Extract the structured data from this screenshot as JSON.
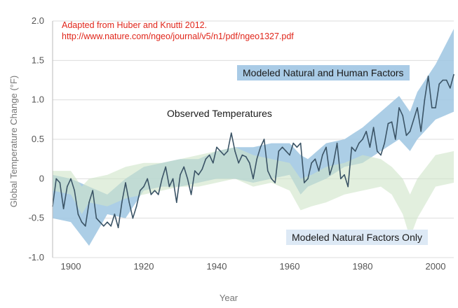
{
  "source_note": {
    "line1": "Adapted from Huber and Knutti 2012.",
    "line2": "http://www.nature.com/ngeo/journal/v5/n1/pdf/ngeo1327.pdf"
  },
  "annotations": {
    "observed": "Observed Temperatures",
    "human": "Modeled Natural and Human Factors",
    "natural": "Modeled Natural Factors Only"
  },
  "colors": {
    "observed_line": "#3b5466",
    "human_band": "#9ec6e2",
    "natural_band": "#cfe5c8",
    "overlap_band": "#8fbcb4",
    "grid": "#dddddd",
    "text_red": "#e0261b"
  },
  "chart_data": {
    "type": "line",
    "xlabel": "Year",
    "ylabel": "Global Temperature Change (°F)",
    "xlim": [
      1895,
      2005
    ],
    "ylim": [
      -1.0,
      2.0
    ],
    "x_ticks": [
      1900,
      1920,
      1940,
      1960,
      1980,
      2000
    ],
    "y_ticks": [
      -1.0,
      -0.5,
      0,
      0.5,
      1.0,
      1.5,
      2.0
    ],
    "y_tick_labels": [
      "-1.0",
      "-0.5",
      "0",
      "0.5",
      "1.0",
      "1.5",
      "2.0"
    ],
    "grid": "horizontal",
    "series": [
      {
        "name": "Observed Temperatures",
        "x": [
          1895,
          1896,
          1897,
          1898,
          1899,
          1900,
          1901,
          1902,
          1903,
          1904,
          1905,
          1906,
          1907,
          1908,
          1909,
          1910,
          1911,
          1912,
          1913,
          1914,
          1915,
          1916,
          1917,
          1918,
          1919,
          1920,
          1921,
          1922,
          1923,
          1924,
          1925,
          1926,
          1927,
          1928,
          1929,
          1930,
          1931,
          1932,
          1933,
          1934,
          1935,
          1936,
          1937,
          1938,
          1939,
          1940,
          1941,
          1942,
          1943,
          1944,
          1945,
          1946,
          1947,
          1948,
          1949,
          1950,
          1951,
          1952,
          1953,
          1954,
          1955,
          1956,
          1957,
          1958,
          1959,
          1960,
          1961,
          1962,
          1963,
          1964,
          1965,
          1966,
          1967,
          1968,
          1969,
          1970,
          1971,
          1972,
          1973,
          1974,
          1975,
          1976,
          1977,
          1978,
          1979,
          1980,
          1981,
          1982,
          1983,
          1984,
          1985,
          1986,
          1987,
          1988,
          1989,
          1990,
          1991,
          1992,
          1993,
          1994,
          1995,
          1996,
          1997,
          1998,
          1999,
          2000,
          2001,
          2002,
          2003,
          2004,
          2005
        ],
        "values": [
          -0.35,
          0.0,
          -0.05,
          -0.38,
          -0.1,
          0.0,
          -0.15,
          -0.45,
          -0.55,
          -0.6,
          -0.3,
          -0.15,
          -0.5,
          -0.55,
          -0.6,
          -0.55,
          -0.6,
          -0.45,
          -0.62,
          -0.3,
          -0.05,
          -0.3,
          -0.5,
          -0.35,
          -0.15,
          -0.1,
          0.0,
          -0.2,
          -0.15,
          -0.2,
          0.0,
          0.15,
          -0.1,
          0.0,
          -0.3,
          0.05,
          0.15,
          0.0,
          -0.2,
          0.1,
          0.05,
          0.12,
          0.25,
          0.3,
          0.2,
          0.4,
          0.35,
          0.3,
          0.35,
          0.58,
          0.35,
          0.2,
          0.3,
          0.28,
          0.2,
          0.0,
          0.25,
          0.4,
          0.5,
          0.1,
          0.0,
          -0.05,
          0.35,
          0.4,
          0.35,
          0.3,
          0.45,
          0.4,
          0.45,
          -0.05,
          0.0,
          0.2,
          0.25,
          0.1,
          0.3,
          0.4,
          0.05,
          0.2,
          0.45,
          0.0,
          0.05,
          -0.1,
          0.4,
          0.35,
          0.45,
          0.5,
          0.6,
          0.4,
          0.65,
          0.35,
          0.3,
          0.45,
          0.7,
          0.72,
          0.5,
          0.9,
          0.8,
          0.55,
          0.6,
          0.75,
          0.9,
          0.6,
          1.0,
          1.3,
          0.9,
          0.9,
          1.2,
          1.25,
          1.25,
          1.15,
          1.32
        ]
      },
      {
        "name": "Modeled Natural and Human Factors",
        "x": [
          1895,
          1900,
          1905,
          1910,
          1915,
          1920,
          1925,
          1930,
          1935,
          1940,
          1945,
          1950,
          1955,
          1960,
          1963,
          1965,
          1970,
          1975,
          1980,
          1985,
          1990,
          1993,
          1995,
          2000,
          2005
        ],
        "lower": [
          -0.5,
          -0.55,
          -0.85,
          -0.45,
          -0.5,
          -0.15,
          -0.1,
          -0.1,
          -0.05,
          0.0,
          0.0,
          -0.05,
          0.0,
          0.05,
          -0.2,
          -0.1,
          0.0,
          0.15,
          0.2,
          0.35,
          0.5,
          0.35,
          0.5,
          0.75,
          0.85
        ],
        "upper": [
          0.05,
          0.0,
          -0.1,
          -0.2,
          0.0,
          0.15,
          0.2,
          0.25,
          0.25,
          0.35,
          0.4,
          0.4,
          0.45,
          0.45,
          0.3,
          0.25,
          0.45,
          0.5,
          0.65,
          0.85,
          1.05,
          0.85,
          1.1,
          1.45,
          1.9
        ]
      },
      {
        "name": "Modeled Natural Factors Only",
        "x": [
          1895,
          1900,
          1903,
          1905,
          1910,
          1915,
          1920,
          1925,
          1930,
          1935,
          1940,
          1945,
          1950,
          1955,
          1960,
          1963,
          1966,
          1970,
          1975,
          1980,
          1985,
          1988,
          1991,
          1993,
          1995,
          2000,
          2005
        ],
        "lower": [
          -0.15,
          -0.2,
          -0.45,
          -0.3,
          -0.35,
          -0.25,
          -0.2,
          -0.15,
          -0.1,
          -0.1,
          -0.05,
          0.0,
          -0.1,
          -0.05,
          -0.15,
          -0.4,
          -0.35,
          -0.3,
          -0.2,
          -0.15,
          -0.1,
          -0.2,
          -0.45,
          -0.75,
          -0.5,
          -0.1,
          -0.05
        ],
        "upper": [
          0.1,
          0.1,
          -0.1,
          0.0,
          0.05,
          0.15,
          0.2,
          0.2,
          0.25,
          0.3,
          0.35,
          0.4,
          0.3,
          0.25,
          0.2,
          0.0,
          0.05,
          0.15,
          0.2,
          0.3,
          0.25,
          0.15,
          0.0,
          -0.2,
          0.0,
          0.3,
          0.35
        ]
      }
    ]
  }
}
